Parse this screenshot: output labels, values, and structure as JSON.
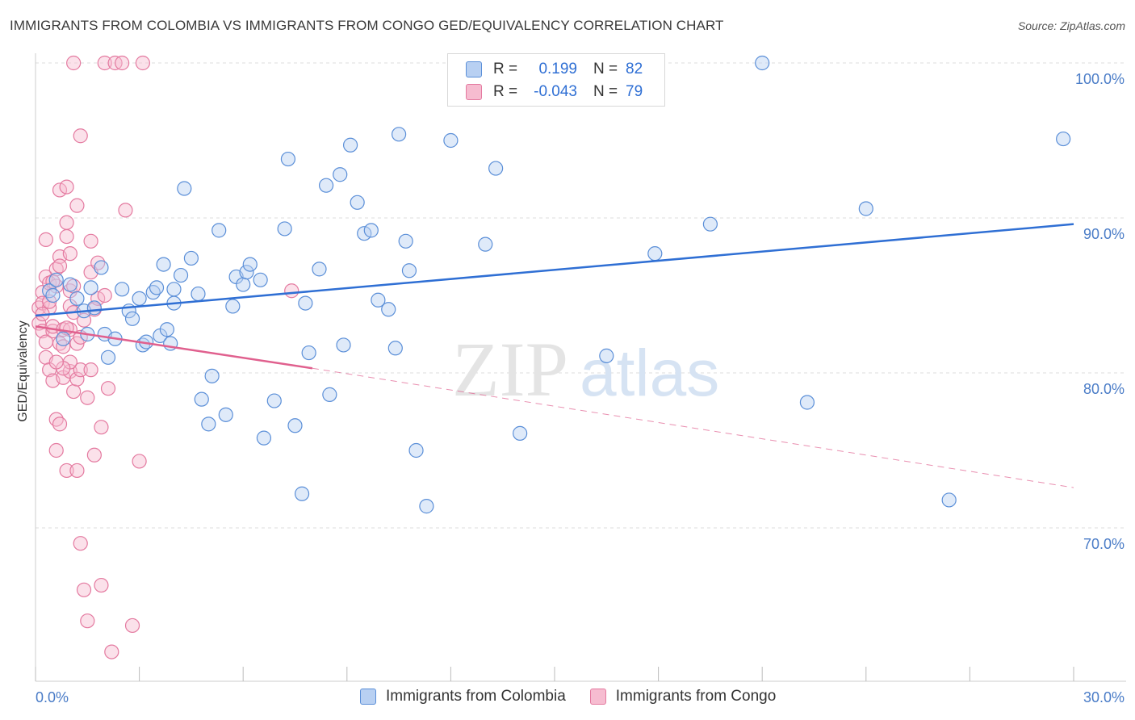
{
  "title": "IMMIGRANTS FROM COLOMBIA VS IMMIGRANTS FROM CONGO GED/EQUIVALENCY CORRELATION CHART",
  "source": "Source: ZipAtlas.com",
  "watermark": {
    "zip": "ZIP",
    "atlas": "atlas"
  },
  "legend": {
    "colombia": {
      "r_label": "R =",
      "r_value": "0.199",
      "n_label": "N =",
      "n_value": "82"
    },
    "congo": {
      "r_label": "R =",
      "r_value": "-0.043",
      "n_label": "N =",
      "n_value": "79"
    }
  },
  "colors": {
    "colombia_fill": "#b8d0f2",
    "colombia_stroke": "#5b8fd8",
    "colombia_line": "#2f6fd4",
    "congo_fill": "#f6bcd0",
    "congo_stroke": "#e47aa0",
    "congo_line": "#e0608e",
    "grid": "#dddddd",
    "axis_text": "#4a7cc7"
  },
  "chart_data": {
    "type": "scatter",
    "title": "IMMIGRANTS FROM COLOMBIA VS IMMIGRANTS FROM CONGO GED/EQUIVALENCY CORRELATION CHART",
    "xlabel": "",
    "ylabel": "GED/Equivalency",
    "xlim": [
      0,
      30
    ],
    "ylim": [
      60,
      102
    ],
    "x_tick_labels": [
      "0.0%",
      "30.0%"
    ],
    "y_ticks": [
      70,
      80,
      90,
      100
    ],
    "y_tick_labels": [
      "70.0%",
      "80.0%",
      "90.0%",
      "100.0%"
    ],
    "grid": true,
    "legend_position": "top-center",
    "series": [
      {
        "name": "Immigrants from Colombia",
        "r": 0.199,
        "n": 82,
        "trend": {
          "x": [
            0,
            30
          ],
          "y": [
            83.7,
            89.6
          ],
          "style": "solid"
        },
        "points": [
          [
            0.4,
            85.3
          ],
          [
            0.6,
            86.0
          ],
          [
            0.8,
            82.2
          ],
          [
            1.0,
            85.7
          ],
          [
            1.2,
            84.8
          ],
          [
            1.4,
            84.0
          ],
          [
            1.6,
            85.5
          ],
          [
            1.7,
            84.2
          ],
          [
            1.9,
            86.8
          ],
          [
            2.0,
            82.5
          ],
          [
            2.1,
            81.0
          ],
          [
            2.3,
            82.2
          ],
          [
            2.5,
            85.4
          ],
          [
            2.7,
            84.0
          ],
          [
            2.8,
            83.5
          ],
          [
            3.0,
            84.8
          ],
          [
            3.1,
            81.8
          ],
          [
            3.2,
            82.0
          ],
          [
            3.4,
            85.2
          ],
          [
            3.6,
            82.4
          ],
          [
            3.7,
            87.0
          ],
          [
            3.8,
            82.8
          ],
          [
            3.9,
            81.9
          ],
          [
            4.0,
            85.4
          ],
          [
            4.2,
            86.3
          ],
          [
            4.3,
            91.9
          ],
          [
            4.5,
            87.4
          ],
          [
            4.7,
            85.1
          ],
          [
            4.8,
            78.3
          ],
          [
            5.0,
            76.7
          ],
          [
            5.1,
            79.8
          ],
          [
            5.3,
            89.2
          ],
          [
            5.5,
            77.3
          ],
          [
            5.7,
            84.3
          ],
          [
            5.8,
            86.2
          ],
          [
            6.0,
            85.7
          ],
          [
            6.1,
            86.5
          ],
          [
            6.2,
            87.0
          ],
          [
            6.5,
            86.0
          ],
          [
            6.6,
            75.8
          ],
          [
            6.9,
            78.2
          ],
          [
            7.2,
            89.3
          ],
          [
            7.3,
            93.8
          ],
          [
            7.5,
            76.6
          ],
          [
            7.7,
            72.2
          ],
          [
            7.8,
            84.5
          ],
          [
            7.9,
            81.3
          ],
          [
            8.2,
            86.7
          ],
          [
            8.4,
            92.1
          ],
          [
            8.5,
            78.6
          ],
          [
            8.8,
            92.8
          ],
          [
            8.9,
            81.8
          ],
          [
            9.1,
            94.7
          ],
          [
            9.3,
            91.0
          ],
          [
            9.5,
            89.0
          ],
          [
            9.7,
            89.2
          ],
          [
            9.9,
            84.7
          ],
          [
            10.2,
            84.1
          ],
          [
            10.4,
            81.6
          ],
          [
            10.5,
            95.4
          ],
          [
            10.7,
            88.5
          ],
          [
            10.8,
            86.6
          ],
          [
            11.0,
            75.0
          ],
          [
            11.3,
            71.4
          ],
          [
            12.0,
            95.0
          ],
          [
            13.0,
            88.3
          ],
          [
            13.3,
            93.2
          ],
          [
            14.0,
            76.1
          ],
          [
            14.0,
            100.0
          ],
          [
            14.8,
            100.0
          ],
          [
            16.5,
            81.1
          ],
          [
            17.9,
            87.7
          ],
          [
            19.5,
            89.6
          ],
          [
            21.0,
            100.0
          ],
          [
            22.3,
            78.1
          ],
          [
            24.0,
            90.6
          ],
          [
            26.4,
            71.8
          ],
          [
            29.7,
            95.1
          ],
          [
            0.5,
            85.0
          ],
          [
            1.5,
            82.5
          ],
          [
            3.5,
            85.5
          ],
          [
            4.0,
            84.5
          ]
        ]
      },
      {
        "name": "Immigrants from Congo",
        "r": -0.043,
        "n": 79,
        "trend": {
          "x": [
            0,
            8.0
          ],
          "y": [
            83.0,
            80.3
          ],
          "style": "solid",
          "extension": {
            "x": [
              8.0,
              30
            ],
            "y": [
              80.3,
              72.6
            ],
            "style": "dashed"
          }
        },
        "points": [
          [
            0.1,
            84.2
          ],
          [
            0.1,
            83.2
          ],
          [
            0.2,
            85.2
          ],
          [
            0.2,
            82.7
          ],
          [
            0.2,
            84.5
          ],
          [
            0.3,
            86.2
          ],
          [
            0.3,
            81.0
          ],
          [
            0.3,
            88.6
          ],
          [
            0.4,
            85.8
          ],
          [
            0.4,
            80.2
          ],
          [
            0.4,
            84.2
          ],
          [
            0.5,
            82.7
          ],
          [
            0.5,
            79.5
          ],
          [
            0.5,
            83.0
          ],
          [
            0.6,
            77.0
          ],
          [
            0.6,
            86.7
          ],
          [
            0.6,
            75.0
          ],
          [
            0.6,
            85.6
          ],
          [
            0.7,
            87.5
          ],
          [
            0.7,
            81.9
          ],
          [
            0.7,
            91.8
          ],
          [
            0.7,
            76.7
          ],
          [
            0.8,
            79.7
          ],
          [
            0.8,
            82.8
          ],
          [
            0.8,
            81.7
          ],
          [
            0.9,
            88.8
          ],
          [
            0.9,
            89.7
          ],
          [
            0.9,
            73.7
          ],
          [
            0.9,
            92.0
          ],
          [
            1.0,
            87.7
          ],
          [
            1.0,
            80.1
          ],
          [
            1.0,
            84.3
          ],
          [
            1.0,
            82.8
          ],
          [
            1.1,
            83.9
          ],
          [
            1.1,
            78.8
          ],
          [
            1.1,
            100.0
          ],
          [
            1.2,
            90.8
          ],
          [
            1.2,
            79.6
          ],
          [
            1.2,
            73.7
          ],
          [
            1.3,
            80.2
          ],
          [
            1.3,
            69.0
          ],
          [
            1.3,
            95.3
          ],
          [
            1.4,
            66.0
          ],
          [
            1.5,
            78.4
          ],
          [
            1.5,
            64.0
          ],
          [
            1.6,
            88.5
          ],
          [
            1.6,
            86.5
          ],
          [
            1.7,
            74.7
          ],
          [
            1.7,
            84.1
          ],
          [
            1.8,
            87.1
          ],
          [
            1.9,
            76.5
          ],
          [
            1.9,
            66.3
          ],
          [
            2.0,
            100.0
          ],
          [
            2.1,
            79.0
          ],
          [
            2.2,
            62.0
          ],
          [
            2.3,
            100.0
          ],
          [
            2.5,
            100.0
          ],
          [
            2.6,
            90.5
          ],
          [
            2.8,
            63.7
          ],
          [
            3.0,
            74.3
          ],
          [
            3.1,
            100.0
          ],
          [
            7.4,
            85.3
          ],
          [
            1.0,
            80.7
          ],
          [
            0.8,
            80.3
          ],
          [
            1.0,
            85.3
          ],
          [
            0.5,
            85.9
          ],
          [
            1.4,
            83.4
          ],
          [
            1.8,
            84.8
          ],
          [
            0.3,
            82.0
          ],
          [
            0.6,
            80.7
          ],
          [
            1.2,
            81.9
          ],
          [
            0.9,
            82.9
          ],
          [
            1.6,
            80.2
          ],
          [
            0.4,
            84.6
          ],
          [
            2.0,
            85.0
          ],
          [
            0.7,
            86.9
          ],
          [
            1.1,
            85.6
          ],
          [
            0.2,
            83.8
          ],
          [
            1.3,
            82.3
          ]
        ]
      }
    ]
  }
}
